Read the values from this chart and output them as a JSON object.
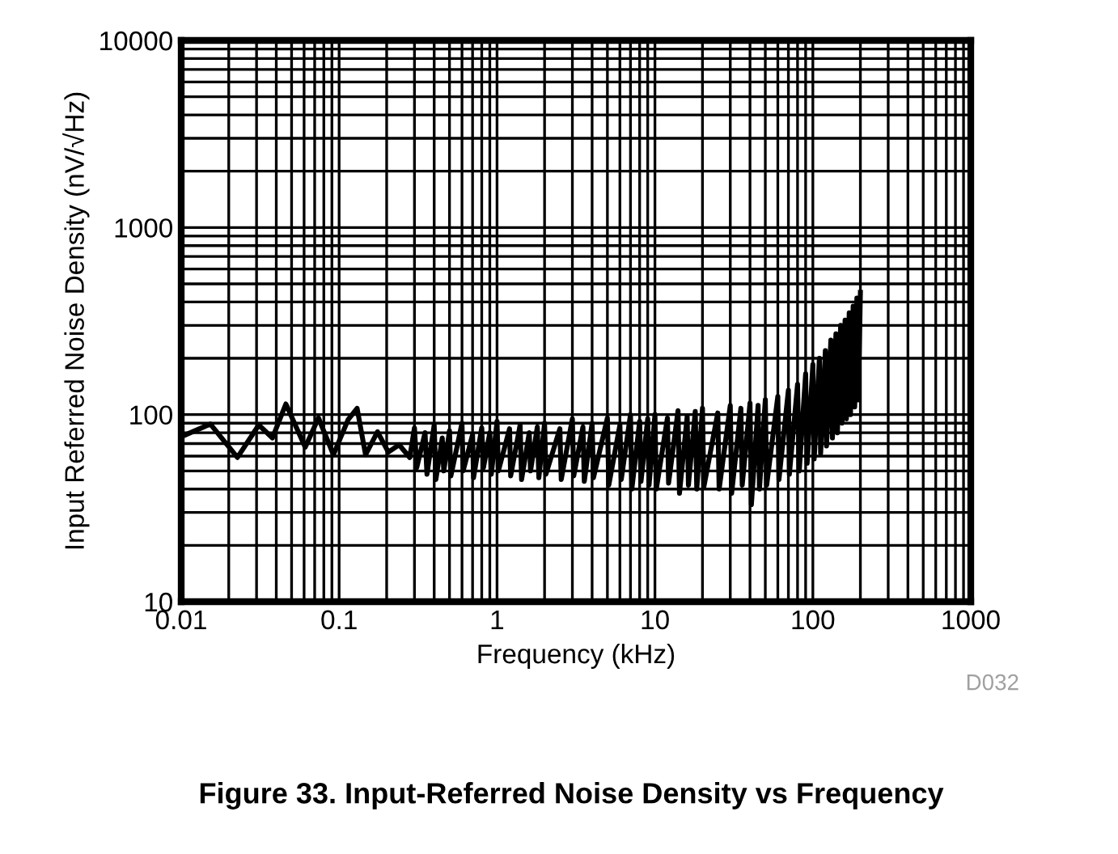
{
  "chart_data": {
    "type": "line",
    "xlabel": "Frequency (kHz)",
    "ylabel": "Input Referred Noise Density (nV/√Hz)",
    "log": "xy",
    "xlim": [
      0.01,
      1000
    ],
    "ylim": [
      10,
      10000
    ],
    "xticks": [
      {
        "value": 0.01,
        "label": "0.01"
      },
      {
        "value": 0.1,
        "label": "0.1"
      },
      {
        "value": 1,
        "label": "1"
      },
      {
        "value": 10,
        "label": "10"
      },
      {
        "value": 100,
        "label": "100"
      },
      {
        "value": 1000,
        "label": "1000"
      }
    ],
    "yticks": [
      10,
      100,
      1000,
      10000
    ],
    "grid": true,
    "line_style": "solid",
    "marker": "none",
    "annotations": [
      "D032",
      "Figure 33. Input-Referred Noise Density vs Frequency"
    ],
    "series": [
      {
        "color": "#000000",
        "x": [
          0.0103,
          0.0153,
          0.0227,
          0.031,
          0.0378,
          0.046,
          0.061,
          0.074,
          0.092,
          0.114,
          0.13,
          0.147,
          0.175,
          0.205,
          0.24,
          0.28,
          0.3,
          0.31,
          0.35,
          0.36,
          0.4,
          0.41,
          0.45,
          0.46,
          0.5,
          0.51,
          0.6,
          0.61,
          0.7,
          0.71,
          0.8,
          0.82,
          0.9,
          0.92,
          1,
          1.02,
          1.2,
          1.22,
          1.4,
          1.43,
          1.6,
          1.63,
          1.8,
          1.84,
          2,
          2.04,
          2.5,
          2.55,
          3,
          3.06,
          3.5,
          3.57,
          4,
          4.08,
          5,
          5.1,
          6,
          6.12,
          7,
          7.14,
          8,
          8.16,
          9,
          9.18,
          10,
          10.2,
          12,
          12.2,
          14,
          14.3,
          16,
          16.3,
          18,
          18.4,
          20,
          20.4,
          25,
          25.5,
          30,
          30.6,
          35,
          35.7,
          40,
          40.8,
          45,
          45.9,
          50,
          51,
          60,
          61,
          70,
          71,
          80,
          82,
          90,
          92,
          100,
          102,
          110,
          112,
          120,
          122,
          130,
          133,
          140,
          143,
          150,
          153,
          160,
          163,
          170,
          173,
          180,
          184,
          190,
          194,
          200
        ],
        "values": [
          77,
          89,
          59,
          88,
          75,
          114,
          67,
          96,
          61,
          94,
          108,
          61,
          81,
          63,
          69,
          59,
          85,
          52,
          80,
          48,
          88,
          45,
          75,
          50,
          82,
          47,
          90,
          50,
          78,
          46,
          85,
          52,
          80,
          48,
          92,
          50,
          84,
          47,
          88,
          45,
          80,
          50,
          86,
          46,
          90,
          48,
          84,
          45,
          95,
          47,
          86,
          44,
          90,
          46,
          96,
          42,
          88,
          45,
          100,
          40,
          92,
          44,
          95,
          42,
          100,
          40,
          96,
          43,
          105,
          38,
          98,
          42,
          104,
          40,
          108,
          41,
          102,
          40,
          112,
          38,
          108,
          42,
          115,
          33,
          112,
          40,
          120,
          42,
          125,
          45,
          135,
          48,
          145,
          50,
          165,
          55,
          185,
          58,
          200,
          62,
          220,
          68,
          250,
          75,
          270,
          80,
          300,
          90,
          320,
          95,
          350,
          100,
          380,
          110,
          420,
          120,
          450
        ]
      }
    ]
  }
}
